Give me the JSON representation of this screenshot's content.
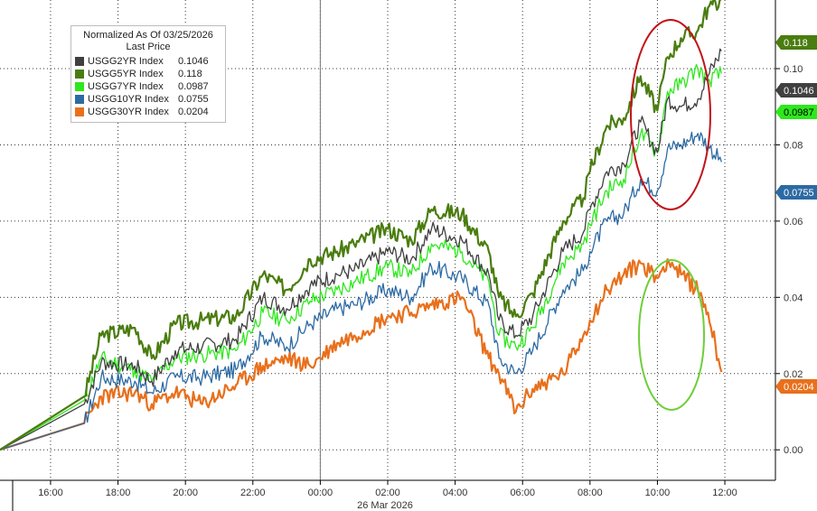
{
  "chart_data": {
    "type": "line",
    "title": "",
    "xlabel": "",
    "ylabel": "",
    "x_ticks": [
      "16:00",
      "18:00",
      "20:00",
      "22:00",
      "00:00",
      "02:00",
      "04:00",
      "06:00",
      "08:00",
      "10:00",
      "12:00"
    ],
    "x_range_hours": [
      14.5,
      14
    ],
    "date_label": "26 Mar 2026",
    "y_ticks": [
      "0.00",
      "0.02",
      "0.04",
      "0.06",
      "0.08",
      "0.10"
    ],
    "ylim": [
      -0.008,
      0.118
    ],
    "grid": true,
    "legend": {
      "position": "top-left",
      "title": "Normalized As Of 03/25/2026",
      "subtitle": "Last Price"
    },
    "series": [
      {
        "name": "USGG5YR Index",
        "last": "0.118",
        "color": "#4a7d0f",
        "x": [
          14.5,
          17.0,
          17.5,
          18.5,
          19.0,
          19.7,
          20.5,
          21.5,
          22.3,
          23.0,
          23.7,
          24.5,
          25.0,
          26.0,
          26.7,
          27.3,
          28.2,
          29.0,
          29.3,
          29.8,
          30.3,
          31.2,
          31.8,
          32.0,
          32.5,
          33.0,
          33.5,
          34.0,
          34.3,
          34.7,
          35.2,
          35.5,
          35.9
        ],
        "y": [
          0.0,
          0.014,
          0.03,
          0.032,
          0.024,
          0.033,
          0.034,
          0.035,
          0.046,
          0.042,
          0.05,
          0.052,
          0.054,
          0.058,
          0.055,
          0.063,
          0.062,
          0.052,
          0.04,
          0.035,
          0.041,
          0.06,
          0.066,
          0.073,
          0.085,
          0.087,
          0.098,
          0.089,
          0.103,
          0.108,
          0.11,
          0.116,
          0.118
        ]
      },
      {
        "name": "USGG2YR Index",
        "last": "0.1046",
        "color": "#404040",
        "x": [
          14.5,
          17.0,
          17.5,
          18.5,
          19.0,
          19.7,
          20.5,
          21.5,
          22.3,
          23.0,
          23.7,
          24.5,
          25.0,
          26.0,
          26.7,
          27.3,
          28.2,
          29.0,
          29.3,
          29.8,
          30.3,
          31.2,
          31.8,
          32.0,
          32.5,
          33.0,
          33.5,
          34.0,
          34.3,
          34.7,
          35.2,
          35.5,
          35.9
        ],
        "y": [
          0.0,
          0.012,
          0.023,
          0.022,
          0.018,
          0.026,
          0.027,
          0.029,
          0.04,
          0.037,
          0.043,
          0.046,
          0.047,
          0.052,
          0.05,
          0.058,
          0.055,
          0.046,
          0.034,
          0.03,
          0.035,
          0.052,
          0.057,
          0.063,
          0.073,
          0.075,
          0.086,
          0.078,
          0.092,
          0.09,
          0.092,
          0.098,
          0.1046
        ]
      },
      {
        "name": "USGG7YR Index",
        "last": "0.0987",
        "color": "#2ee81d",
        "x": [
          14.5,
          17.0,
          17.5,
          18.5,
          19.0,
          19.7,
          20.5,
          21.5,
          22.3,
          23.0,
          23.7,
          24.5,
          25.0,
          26.0,
          26.7,
          27.3,
          28.2,
          29.0,
          29.3,
          29.8,
          30.3,
          31.2,
          31.8,
          32.0,
          32.5,
          33.0,
          33.5,
          34.0,
          34.3,
          34.7,
          35.2,
          35.5,
          35.9
        ],
        "y": [
          0.0,
          0.013,
          0.024,
          0.021,
          0.018,
          0.024,
          0.025,
          0.026,
          0.036,
          0.034,
          0.039,
          0.042,
          0.044,
          0.048,
          0.046,
          0.054,
          0.052,
          0.044,
          0.03,
          0.027,
          0.032,
          0.049,
          0.054,
          0.059,
          0.068,
          0.071,
          0.083,
          0.078,
          0.094,
          0.096,
          0.1,
          0.097,
          0.0987
        ]
      },
      {
        "name": "USGG10YR Index",
        "last": "0.0755",
        "color": "#2c6aa3",
        "x": [
          14.5,
          17.0,
          17.5,
          18.5,
          19.0,
          19.7,
          20.5,
          21.5,
          22.3,
          23.0,
          23.7,
          24.5,
          25.0,
          26.0,
          26.7,
          27.3,
          28.2,
          29.0,
          29.3,
          29.8,
          30.3,
          31.2,
          31.8,
          32.0,
          32.5,
          33.0,
          33.5,
          34.0,
          34.3,
          34.7,
          35.2,
          35.5,
          35.9
        ],
        "y": [
          0.0,
          0.007,
          0.019,
          0.018,
          0.015,
          0.019,
          0.019,
          0.021,
          0.03,
          0.027,
          0.033,
          0.037,
          0.038,
          0.042,
          0.04,
          0.048,
          0.045,
          0.038,
          0.024,
          0.02,
          0.026,
          0.042,
          0.047,
          0.052,
          0.06,
          0.062,
          0.071,
          0.068,
          0.079,
          0.08,
          0.083,
          0.08,
          0.0755
        ]
      },
      {
        "name": "USGG30YR Index",
        "last": "0.0204",
        "color": "#e8701c",
        "x": [
          14.5,
          17.0,
          17.5,
          18.5,
          19.0,
          19.7,
          20.5,
          21.5,
          22.3,
          23.0,
          23.7,
          24.5,
          25.0,
          26.0,
          26.7,
          27.3,
          28.2,
          29.0,
          29.3,
          29.8,
          30.3,
          31.2,
          31.8,
          32.0,
          32.5,
          33.0,
          33.5,
          34.0,
          34.3,
          34.7,
          35.2,
          35.5,
          35.9
        ],
        "y": [
          0.0,
          0.007,
          0.014,
          0.015,
          0.012,
          0.015,
          0.012,
          0.017,
          0.022,
          0.024,
          0.022,
          0.028,
          0.03,
          0.035,
          0.036,
          0.038,
          0.04,
          0.024,
          0.02,
          0.01,
          0.016,
          0.02,
          0.03,
          0.034,
          0.042,
          0.046,
          0.049,
          0.045,
          0.05,
          0.046,
          0.042,
          0.036,
          0.0204
        ]
      }
    ]
  }
}
